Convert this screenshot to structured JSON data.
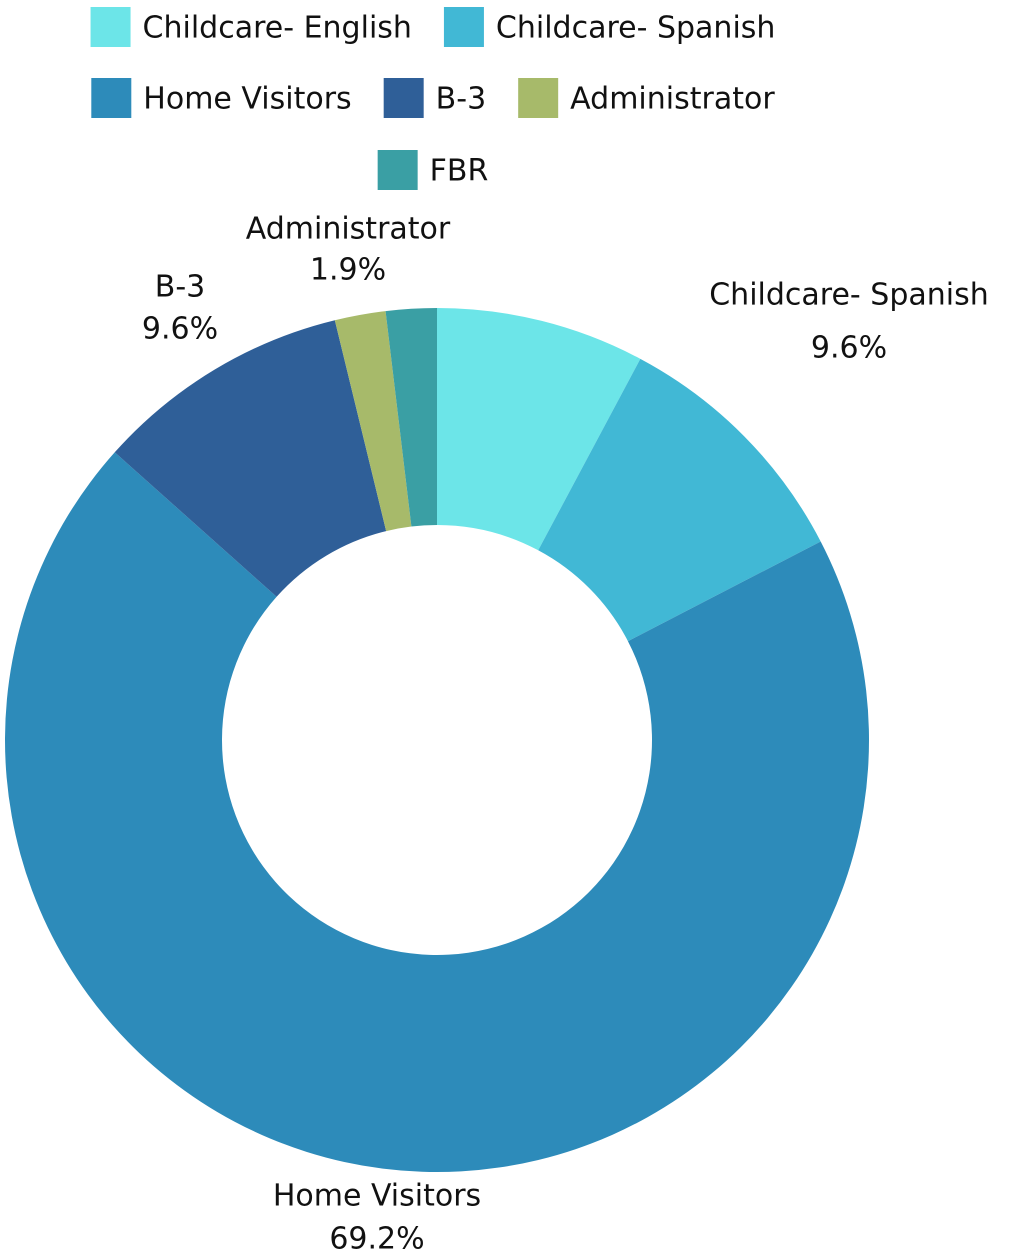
{
  "chart_data": {
    "type": "donut",
    "categories": [
      "Childcare- English",
      "Childcare- Spanish",
      "Home Visitors",
      "B-3",
      "Administrator",
      "FBR"
    ],
    "values": [
      7.8,
      9.6,
      69.2,
      9.6,
      1.9,
      1.9
    ],
    "value_labels": [
      null,
      "9.6%",
      "69.2%",
      "9.6%",
      "1.9%",
      null
    ],
    "colors": [
      "#6ce5e8",
      "#41b8d5",
      "#2d8bba",
      "#2f5f98",
      "#a7ba6a",
      "#3a9fa4"
    ],
    "legend": "top"
  }
}
